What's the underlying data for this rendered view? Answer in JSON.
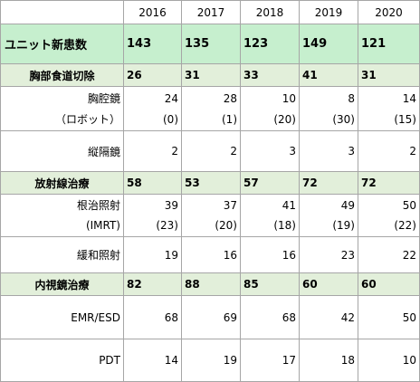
{
  "years": [
    "2016",
    "2017",
    "2018",
    "2019",
    "2020"
  ],
  "total": {
    "label": "ユニット新患数",
    "values": [
      "143",
      "135",
      "123",
      "149",
      "121"
    ]
  },
  "surgery": {
    "label": "胸部食道切除",
    "values": [
      "26",
      "31",
      "33",
      "41",
      "31"
    ],
    "thoracoscopic": {
      "label": "胸腔鏡",
      "values": [
        "24",
        "28",
        "10",
        "8",
        "14"
      ]
    },
    "robot": {
      "label": "（ロボット）",
      "values": [
        "(0)",
        "(1)",
        "(20)",
        "(30)",
        "(15)"
      ]
    },
    "mediastinoscopic": {
      "label": "縦隔鏡",
      "values": [
        "2",
        "2",
        "3",
        "3",
        "2"
      ]
    }
  },
  "radiation": {
    "label": "放射線治療",
    "values": [
      "58",
      "53",
      "57",
      "72",
      "72"
    ],
    "curative": {
      "label": "根治照射",
      "values": [
        "39",
        "37",
        "41",
        "49",
        "50"
      ]
    },
    "imrt": {
      "label": "(IMRT)",
      "values": [
        "(23)",
        "(20)",
        "(18)",
        "(19)",
        "(22)"
      ]
    },
    "palliative": {
      "label": "緩和照射",
      "values": [
        "19",
        "16",
        "16",
        "23",
        "22"
      ]
    }
  },
  "endoscopy": {
    "label": "内視鏡治療",
    "values": [
      "82",
      "88",
      "85",
      "60",
      "60"
    ],
    "emr": {
      "label": "EMR/ESD",
      "values": [
        "68",
        "69",
        "68",
        "42",
        "50"
      ]
    },
    "pdt": {
      "label": "PDT",
      "values": [
        "14",
        "19",
        "17",
        "18",
        "10"
      ]
    }
  }
}
